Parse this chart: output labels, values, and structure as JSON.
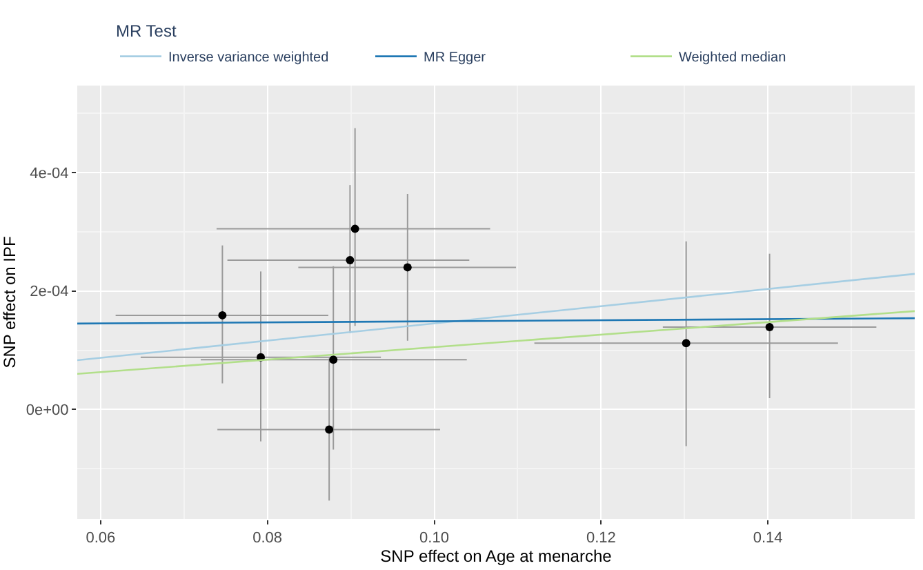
{
  "chart_data": {
    "type": "scatter",
    "xlabel": "SNP effect on Age at menarche",
    "ylabel": "SNP effect on IPF",
    "legend_title": "MR Test",
    "series": [
      {
        "color": "#000000",
        "marker": "circle",
        "x": [
          0.0746,
          0.0792,
          0.0879,
          0.0874,
          0.0899,
          0.0905,
          0.0968,
          0.1302,
          0.1402
        ],
        "values": [
          0.000159,
          8.8e-05,
          8.4e-05,
          -3.4e-05,
          0.000252,
          0.000305,
          0.00024,
          0.000112,
          0.000139
        ],
        "errors": [
          [
            4.4e-05,
            0.000277
          ],
          [
            -5.4e-05,
            0.000233
          ],
          [
            -6.8e-05,
            0.000242
          ],
          [
            -0.000154,
            8.6e-05
          ],
          [
            0.000129,
            0.000379
          ],
          [
            0.000141,
            0.000475
          ],
          [
            0.000116,
            0.000364
          ],
          [
            -6.2e-05,
            0.000284
          ],
          [
            1.9e-05,
            0.000263
          ]
        ],
        "xerrors": [
          [
            0.0618,
            0.0873
          ],
          [
            0.0648,
            0.0936
          ],
          [
            0.072,
            0.1039
          ],
          [
            0.074,
            0.1007
          ],
          [
            0.0752,
            0.1042
          ],
          [
            0.0739,
            0.1067
          ],
          [
            0.0837,
            0.1098
          ],
          [
            0.112,
            0.1484
          ],
          [
            0.1274,
            0.153
          ]
        ]
      },
      {
        "type": "line",
        "name": "Inverse variance weighted",
        "color": "#a6cee3",
        "x": [
          0.0572,
          0.1576
        ],
        "values": [
          8.3e-05,
          0.000229
        ]
      },
      {
        "type": "line",
        "name": "MR Egger",
        "color": "#1f78b4",
        "x": [
          0.0572,
          0.1576
        ],
        "values": [
          0.000145,
          0.000154
        ]
      },
      {
        "type": "line",
        "name": "Weighted median",
        "color": "#b2df8a",
        "x": [
          0.0572,
          0.1576
        ],
        "values": [
          6e-05,
          0.000166
        ]
      }
    ],
    "xlim": [
      0.0572,
      0.1576
    ],
    "xticks": [
      0.06,
      0.08,
      {
        "value": 0.1,
        "label": "0.10"
      },
      0.12,
      0.14
    ],
    "ylim": [
      -0.000185,
      0.000547
    ],
    "yticks": [
      {
        "value": 0,
        "label": "0e+00"
      },
      {
        "value": 0.0002,
        "label": "2e-04"
      },
      {
        "value": 0.0004,
        "label": "4e-04"
      }
    ],
    "grid": true,
    "legend": "top"
  }
}
